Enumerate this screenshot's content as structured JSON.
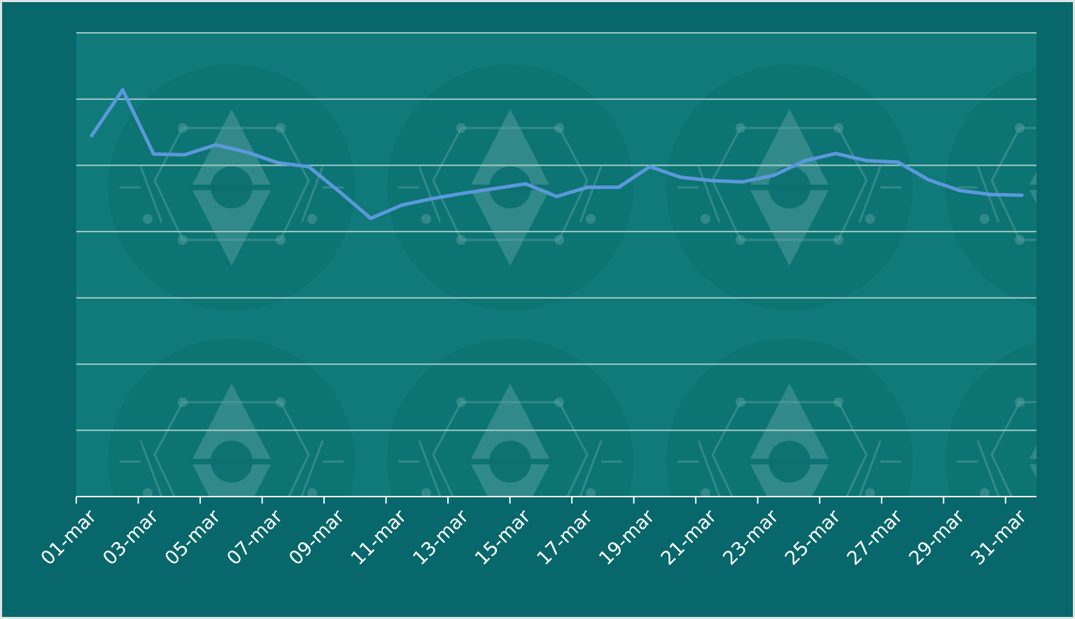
{
  "colors": {
    "frame": "#07676a",
    "plot_background": "#0f7a79",
    "gridline": "#9fcac6",
    "line": "#5b98db",
    "text": "#ffffff"
  },
  "chart_data": {
    "type": "line",
    "title": "",
    "xlabel": "",
    "ylabel": "",
    "y_tick_labels_shown": false,
    "ylim": [
      0,
      7
    ],
    "grid": "horizontal",
    "legend": "none",
    "watermark": "logo pattern",
    "x": [
      "01-mar",
      "02-mar",
      "03-mar",
      "04-mar",
      "05-mar",
      "06-mar",
      "07-mar",
      "08-mar",
      "09-mar",
      "10-mar",
      "11-mar",
      "12-mar",
      "13-mar",
      "14-mar",
      "15-mar",
      "16-mar",
      "17-mar",
      "18-mar",
      "19-mar",
      "20-mar",
      "21-mar",
      "22-mar",
      "23-mar",
      "24-mar",
      "25-mar",
      "26-mar",
      "27-mar",
      "28-mar",
      "29-mar",
      "30-mar",
      "31-mar"
    ],
    "x_tick_labels": [
      "01-mar",
      "03-mar",
      "05-mar",
      "07-mar",
      "09-mar",
      "11-mar",
      "13-mar",
      "15-mar",
      "17-mar",
      "19-mar",
      "21-mar",
      "23-mar",
      "25-mar",
      "27-mar",
      "29-mar",
      "31-mar"
    ],
    "series": [
      {
        "values": [
          5.45,
          6.14,
          5.17,
          5.16,
          5.31,
          5.2,
          5.04,
          4.98,
          4.6,
          4.2,
          4.4,
          4.5,
          4.58,
          4.65,
          4.72,
          4.53,
          4.67,
          4.67,
          4.98,
          4.82,
          4.77,
          4.75,
          4.85,
          5.07,
          5.18,
          5.07,
          5.05,
          4.78,
          4.62,
          4.56,
          4.55
        ]
      }
    ]
  }
}
